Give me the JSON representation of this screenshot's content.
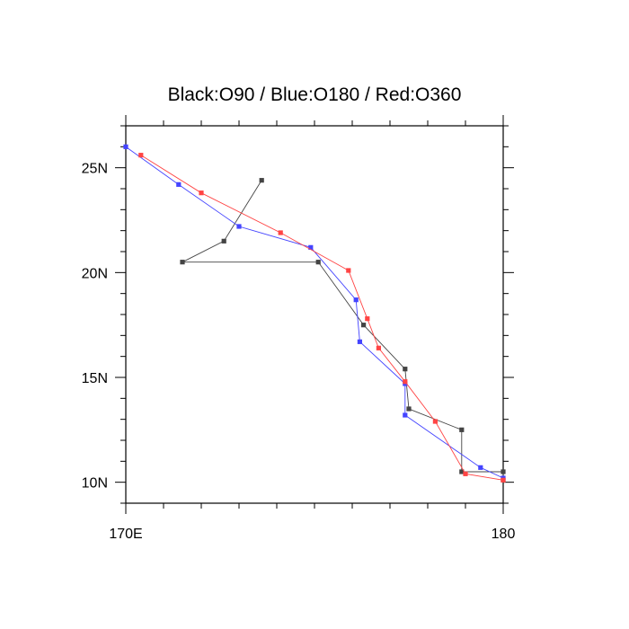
{
  "chart_data": {
    "type": "line",
    "title": "Black:O90 / Blue:O180 / Red:O360",
    "xlabel": "",
    "ylabel": "",
    "xlim": [
      170,
      180
    ],
    "ylim": [
      9,
      27
    ],
    "x_ticks": [
      {
        "value": 170,
        "label": "170E"
      },
      {
        "value": 180,
        "label": "180"
      }
    ],
    "y_ticks": [
      {
        "value": 10,
        "label": "10N"
      },
      {
        "value": 15,
        "label": "15N"
      },
      {
        "value": 20,
        "label": "20N"
      },
      {
        "value": 25,
        "label": "25N"
      }
    ],
    "x_minor_step": 1,
    "y_minor_step": 1,
    "grid": false,
    "series": [
      {
        "color": "#444444",
        "points": [
          [
            173.6,
            24.4
          ],
          [
            172.6,
            21.5
          ],
          [
            171.5,
            20.5
          ],
          [
            175.1,
            20.5
          ],
          [
            176.3,
            17.5
          ],
          [
            177.4,
            15.4
          ],
          [
            177.5,
            13.5
          ],
          [
            178.9,
            12.5
          ],
          [
            178.9,
            10.5
          ],
          [
            180.0,
            10.5
          ],
          [
            180.0,
            10.1
          ]
        ]
      },
      {
        "color": "#4444ff",
        "points": [
          [
            170.0,
            26.0
          ],
          [
            171.4,
            24.2
          ],
          [
            173.0,
            22.2
          ],
          [
            174.9,
            21.2
          ],
          [
            176.1,
            18.7
          ],
          [
            176.2,
            16.7
          ],
          [
            177.4,
            14.7
          ],
          [
            177.4,
            13.2
          ],
          [
            179.4,
            10.7
          ],
          [
            180.0,
            10.2
          ]
        ]
      },
      {
        "color": "#ff4444",
        "points": [
          [
            170.4,
            25.6
          ],
          [
            172.0,
            23.8
          ],
          [
            174.1,
            21.9
          ],
          [
            175.9,
            20.1
          ],
          [
            176.4,
            17.8
          ],
          [
            176.7,
            16.4
          ],
          [
            177.4,
            14.8
          ],
          [
            178.2,
            12.9
          ],
          [
            179.0,
            10.4
          ],
          [
            180.0,
            10.1
          ]
        ]
      }
    ]
  }
}
